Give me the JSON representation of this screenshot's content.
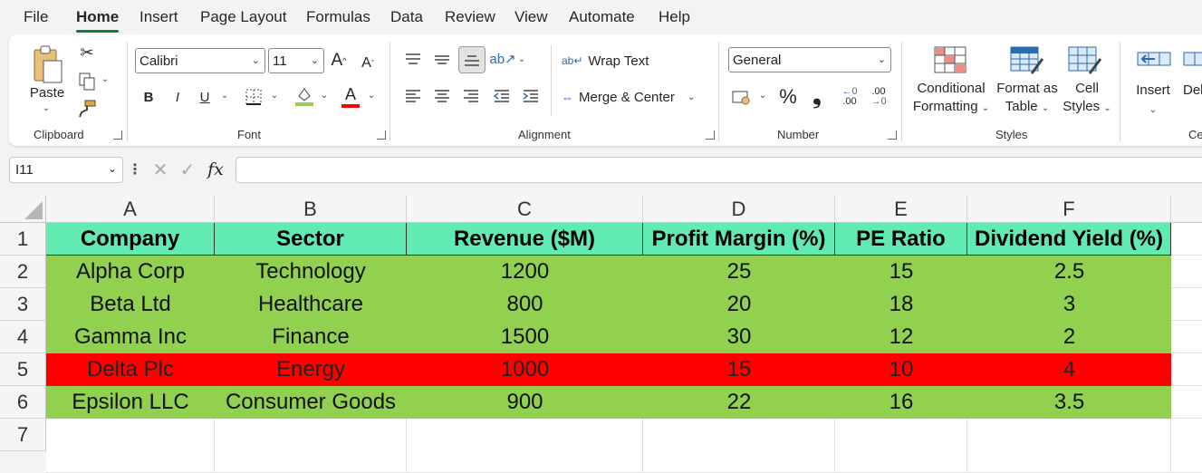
{
  "menu": {
    "tabs": [
      "File",
      "Home",
      "Insert",
      "Page Layout",
      "Formulas",
      "Data",
      "Review",
      "View",
      "Automate",
      "Help"
    ],
    "active": "Home"
  },
  "ribbon": {
    "clipboard": {
      "paste": "Paste",
      "label": "Clipboard"
    },
    "font": {
      "name": "Calibri",
      "size": "11",
      "bold": "B",
      "italic": "I",
      "underline": "U",
      "label": "Font",
      "grow": "A",
      "shrink": "A",
      "font_color": "A"
    },
    "alignment": {
      "wrap_text": "Wrap Text",
      "merge_center": "Merge & Center",
      "label": "Alignment"
    },
    "number": {
      "format": "General",
      "percent": "%",
      "comma": "❟",
      "inc_decimal": ".00",
      "dec_decimal": ".00",
      "label": "Number"
    },
    "styles": {
      "conditional": "Conditional",
      "formatting": "Formatting",
      "format_as": "Format as",
      "table": "Table",
      "cell": "Cell",
      "styles_word": "Styles",
      "label": "Styles"
    },
    "cells": {
      "insert": "Insert",
      "delete": "Del",
      "label": "Ce"
    }
  },
  "formula_bar": {
    "name_box": "I11",
    "fx": "fx",
    "content": ""
  },
  "sheet": {
    "columns": [
      "A",
      "B",
      "C",
      "D",
      "E",
      "F"
    ],
    "rows": [
      "1",
      "2",
      "3",
      "4",
      "5",
      "6",
      "7"
    ],
    "header": [
      "Company",
      "Sector",
      "Revenue ($M)",
      "Profit Margin (%)",
      "PE Ratio",
      "Dividend Yield (%)"
    ],
    "data": [
      [
        "Alpha Corp",
        "Technology",
        "1200",
        "25",
        "15",
        "2.5"
      ],
      [
        "Beta Ltd",
        "Healthcare",
        "800",
        "20",
        "18",
        "3"
      ],
      [
        "Gamma Inc",
        "Finance",
        "1500",
        "30",
        "12",
        "2"
      ],
      [
        "Delta Plc",
        "Energy",
        "1000",
        "15",
        "10",
        "4"
      ],
      [
        "Epsilon LLC",
        "Consumer Goods",
        "900",
        "22",
        "16",
        "3.5"
      ]
    ],
    "row_fills": [
      "green",
      "green",
      "green",
      "red",
      "green"
    ],
    "colors": {
      "header_fill": "#61ebb3",
      "green_fill": "#92d050",
      "red_fill": "#ff0000",
      "accent": "#107c41"
    }
  }
}
